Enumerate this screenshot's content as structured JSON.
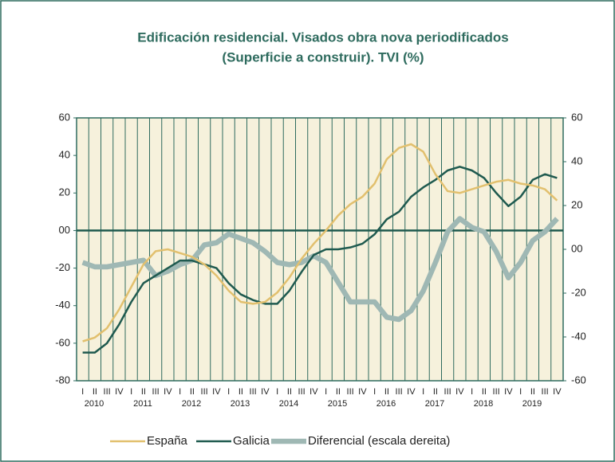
{
  "chart_data": {
    "type": "line",
    "title": "Edificación residencial. Visados obra nova periodificados",
    "subtitle": "(Superficie a construir).  TVI (%)",
    "categories": [
      "I",
      "II",
      "III",
      "IV",
      "I",
      "II",
      "III",
      "IV",
      "I",
      "II",
      "III",
      "IV",
      "I",
      "II",
      "III",
      "IV",
      "I",
      "II",
      "III",
      "IV",
      "I",
      "II",
      "III",
      "IV",
      "I",
      "II",
      "III",
      "IV",
      "I",
      "II",
      "III",
      "IV",
      "I",
      "II",
      "III",
      "IV",
      "I",
      "II",
      "III",
      "IV"
    ],
    "years": [
      "2010",
      "2011",
      "2012",
      "2013",
      "2014",
      "2015",
      "2016",
      "2017",
      "2018",
      "2019"
    ],
    "ylim": [
      -80,
      60
    ],
    "yticks": [
      {
        "value": -80,
        "label": "-80"
      },
      {
        "value": -60,
        "label": "-60"
      },
      {
        "value": -40,
        "label": "-40"
      },
      {
        "value": -20,
        "label": "-20"
      },
      {
        "value": 0,
        "label": "00"
      },
      20,
      40,
      60
    ],
    "y2lim": [
      -60,
      60
    ],
    "y2ticks": [
      -60,
      -40,
      -20,
      {
        "value": 0,
        "label": "00"
      },
      20,
      40,
      60
    ],
    "legend": "bottom",
    "series": [
      {
        "name": "España",
        "color": "#e2c06e",
        "values": [
          -59,
          -57,
          -52,
          -42,
          -30,
          -18,
          -11,
          -10,
          -12,
          -14,
          -18,
          -24,
          -32,
          -38,
          -39,
          -38,
          -33,
          -25,
          -15,
          -7,
          0,
          8,
          14,
          18,
          25,
          38,
          44,
          46,
          42,
          30,
          21,
          20,
          22,
          24,
          26,
          27,
          25,
          24,
          22,
          16
        ]
      },
      {
        "name": "Galicia",
        "color": "#1f5a4f",
        "values": [
          -65,
          -65,
          -60,
          -50,
          -38,
          -28,
          -24,
          -20,
          -16,
          -16,
          -18,
          -20,
          -28,
          -34,
          -37,
          -39,
          -39,
          -32,
          -22,
          -13,
          -10,
          -10,
          -9,
          -7,
          -2,
          6,
          10,
          18,
          23,
          27,
          32,
          34,
          32,
          28,
          20,
          13,
          18,
          27,
          30,
          28
        ]
      },
      {
        "name": "Diferencial (escala dereita)",
        "color": "#9fb8b4",
        "axis": "y2",
        "values": [
          -6,
          -8,
          -8,
          -7,
          -6,
          -5,
          -12,
          -10,
          -7,
          -5,
          2,
          3,
          7,
          5,
          3,
          -1,
          -6,
          -7,
          -6,
          -3,
          -6,
          -15,
          -24,
          -24,
          -24,
          -31,
          -32,
          -28,
          -19,
          -6,
          8,
          14,
          10,
          8,
          -1,
          -13,
          -6,
          4,
          8,
          14
        ]
      }
    ]
  }
}
